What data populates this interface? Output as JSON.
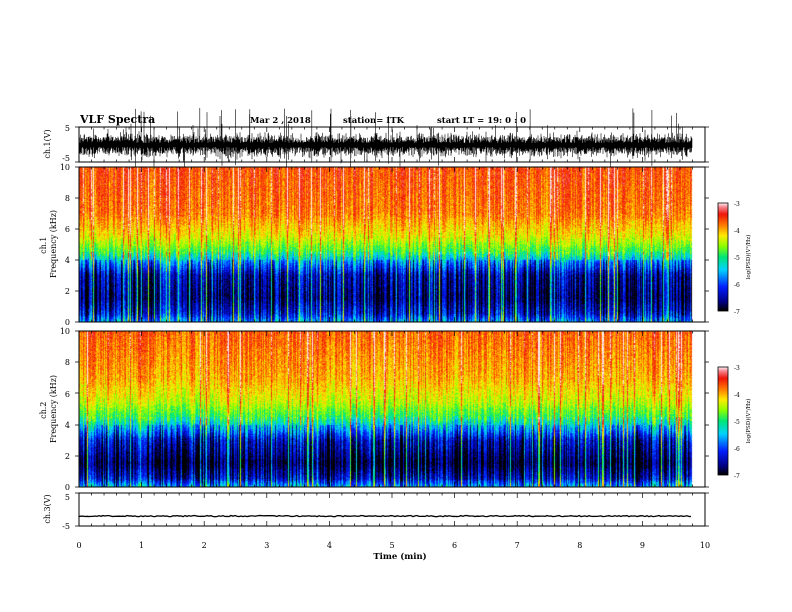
{
  "header": {
    "title": "VLF Spectra",
    "date": "Mar 2 , 2018",
    "station": "station= ITK",
    "start_time": "start LT = 19: 0 : 0"
  },
  "chart_data": [
    {
      "type": "line",
      "name": "ch1-waveform",
      "ylabel": "ch.1(V)",
      "ylim": [
        -5,
        5
      ],
      "y_ticks": [
        "5",
        "-5"
      ],
      "xlim": [
        0,
        10
      ]
    },
    {
      "type": "heatmap",
      "name": "ch1-spectrogram",
      "ylabel": "ch.1\nFrequency (kHz)",
      "ylim": [
        0,
        10
      ],
      "y_ticks": [
        "0",
        "2",
        "4",
        "6",
        "8",
        "10"
      ],
      "xlim": [
        0,
        10
      ],
      "data_end_min": 9.8,
      "colorbar": {
        "label": "log(PSD)(V²/Hz)",
        "range": [
          -7,
          -3
        ],
        "ticks": [
          "-3",
          "-4",
          "-5",
          "-6",
          "-7"
        ]
      },
      "profile_log_psd": [
        [
          0,
          -5.6
        ],
        [
          0.5,
          -6.2
        ],
        [
          1.5,
          -6.6
        ],
        [
          3.0,
          -6.4
        ],
        [
          3.8,
          -5.7
        ],
        [
          4.5,
          -4.9
        ],
        [
          5.5,
          -4.3
        ],
        [
          7.0,
          -3.8
        ],
        [
          10.0,
          -3.6
        ]
      ]
    },
    {
      "type": "heatmap",
      "name": "ch2-spectrogram",
      "ylabel": "ch.2\nFrequency (kHz)",
      "ylim": [
        0,
        10
      ],
      "y_ticks": [
        "0",
        "2",
        "4",
        "6",
        "8",
        "10"
      ],
      "xlim": [
        0,
        10
      ],
      "data_end_min": 9.8,
      "colorbar": {
        "label": "log(PSD)(V²/Hz)",
        "range": [
          -7,
          -3
        ],
        "ticks": [
          "-3",
          "-4",
          "-5",
          "-6",
          "-7"
        ]
      },
      "profile_log_psd": [
        [
          0,
          -5.5
        ],
        [
          0.5,
          -6.3
        ],
        [
          1.5,
          -6.8
        ],
        [
          3.0,
          -6.3
        ],
        [
          3.6,
          -5.7
        ],
        [
          4.5,
          -4.9
        ],
        [
          5.5,
          -4.4
        ],
        [
          7.0,
          -4.0
        ],
        [
          10.0,
          -3.7
        ]
      ]
    },
    {
      "type": "line",
      "name": "ch3-waveform",
      "ylabel": "ch.3(V)",
      "ylim": [
        -5,
        5
      ],
      "y_ticks": [
        "5",
        "-5"
      ],
      "xlim": [
        0,
        10
      ],
      "x_ticks": [
        "0",
        "1",
        "2",
        "3",
        "4",
        "5",
        "6",
        "7",
        "8",
        "9",
        "10"
      ],
      "xlabel": "Time (min)",
      "level_v": -2
    }
  ]
}
